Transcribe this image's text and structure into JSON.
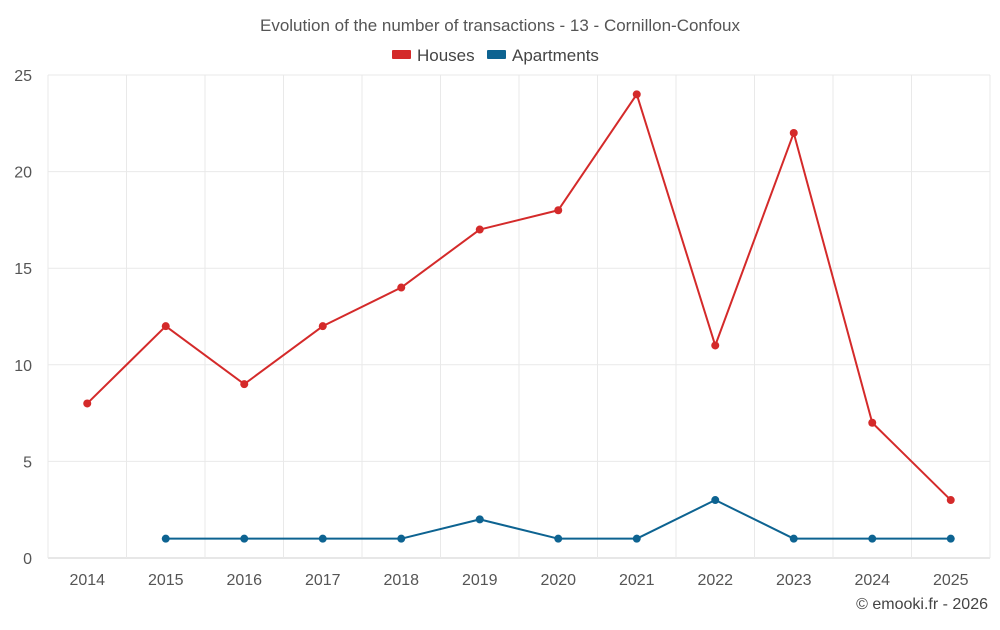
{
  "chart_data": {
    "type": "line",
    "title": "Evolution of the number of transactions - 13 - Cornillon-Confoux",
    "categories": [
      "2014",
      "2015",
      "2016",
      "2017",
      "2018",
      "2019",
      "2020",
      "2021",
      "2022",
      "2023",
      "2024",
      "2025"
    ],
    "series": [
      {
        "name": "Houses",
        "color": "#d42a2a",
        "values": [
          8,
          12,
          9,
          12,
          14,
          17,
          18,
          24,
          11,
          22,
          7,
          3
        ]
      },
      {
        "name": "Apartments",
        "color": "#0d6391",
        "values": [
          null,
          1,
          1,
          1,
          1,
          2,
          1,
          1,
          3,
          1,
          1,
          1
        ]
      }
    ],
    "ylim": [
      0,
      25
    ],
    "yticks": [
      "0",
      "5",
      "10",
      "15",
      "20",
      "25"
    ],
    "grid": true,
    "legend_position": "top-center",
    "xlabel": "",
    "ylabel": ""
  },
  "credit": "© emooki.fr - 2026"
}
